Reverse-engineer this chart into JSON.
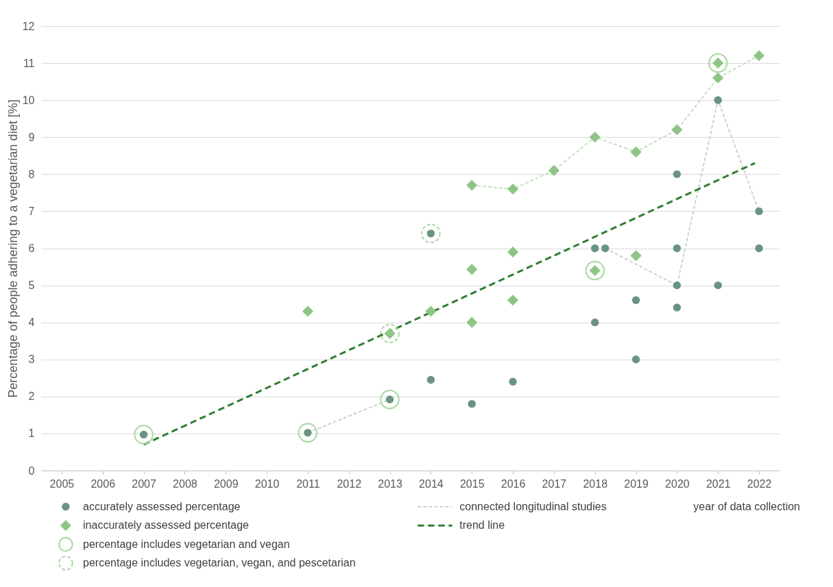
{
  "chart_data": {
    "type": "scatter",
    "xlabel": "year of data collection",
    "ylabel": "Percentage of people adhering to a vegetarian diet [%]",
    "xlim": [
      2004.5,
      2022.5
    ],
    "xticks": [
      2005,
      2006,
      2007,
      2008,
      2009,
      2010,
      2011,
      2012,
      2013,
      2014,
      2015,
      2016,
      2017,
      2018,
      2019,
      2020,
      2021,
      2022
    ],
    "ylim": [
      0,
      12
    ],
    "yticks": [
      0,
      1,
      2,
      3,
      4,
      5,
      6,
      7,
      8,
      9,
      10,
      11,
      12
    ],
    "grid": "y",
    "legend": "bottom",
    "series": [
      {
        "type": "line",
        "line_style": "dashed",
        "color": "#b9cbc2",
        "x": [
          2018.25,
          2020,
          2021,
          2022
        ],
        "values": [
          6,
          5,
          10,
          7
        ],
        "name": "connected longitudinal studies"
      },
      {
        "type": "line",
        "line_style": "dashed",
        "color": "#b9cbc2",
        "x": [
          2011,
          2013
        ],
        "values": [
          1.02,
          1.92
        ]
      },
      {
        "type": "line",
        "line_style": "dashed",
        "color": "#b5dcaf",
        "x": [
          2015,
          2016,
          2017,
          2018,
          2019,
          2020,
          2021,
          2022
        ],
        "values": [
          7.7,
          7.6,
          8.1,
          9,
          8.6,
          9.2,
          10.6,
          11.2
        ]
      },
      {
        "type": "line",
        "line_style": "dashed",
        "color": "#2e7d32",
        "x": [
          2007,
          2021.9
        ],
        "values": [
          0.7,
          8.3
        ],
        "name": "trend line"
      },
      {
        "marker": "circle",
        "color": "#6a9480",
        "name": "accurately assessed percentage",
        "x": [
          2007,
          2011,
          2013,
          2014,
          2014,
          2015,
          2016,
          2018,
          2018,
          2018.25,
          2019,
          2019,
          2020,
          2020,
          2020,
          2020,
          2021,
          2021,
          2022,
          2022
        ],
        "values": [
          0.97,
          1.02,
          1.92,
          2.45,
          6.4,
          1.8,
          2.4,
          4,
          6,
          6,
          4.6,
          3,
          8,
          6,
          5,
          4.4,
          10,
          5,
          7,
          6
        ]
      },
      {
        "marker": "diamond",
        "color": "#8ec586",
        "name": "inaccurately assessed percentage",
        "x": [
          2011,
          2013,
          2014,
          2015,
          2015,
          2015,
          2016,
          2016,
          2016,
          2017,
          2018,
          2018,
          2019,
          2019,
          2020,
          2021,
          2021,
          2022
        ],
        "values": [
          4.3,
          3.7,
          4.3,
          7.7,
          5.43,
          4,
          7.6,
          5.9,
          4.6,
          8.1,
          9,
          5.4,
          8.6,
          5.8,
          9.2,
          10.6,
          11,
          11.2
        ]
      },
      {
        "marker": "circle",
        "line_style": "solid",
        "color": "#a9d8a0",
        "name": "percentage includes vegetarian and vegan",
        "x": [
          2007,
          2011,
          2013,
          2018,
          2021
        ],
        "values": [
          0.97,
          1.02,
          1.92,
          5.4,
          11
        ]
      },
      {
        "marker": "circle",
        "line_style": "dashed",
        "color": "#a9d8a0",
        "name": "percentage includes vegetarian, vegan, and pescetarian",
        "x": [
          2013,
          2014
        ],
        "values": [
          3.7,
          6.4
        ]
      }
    ]
  }
}
